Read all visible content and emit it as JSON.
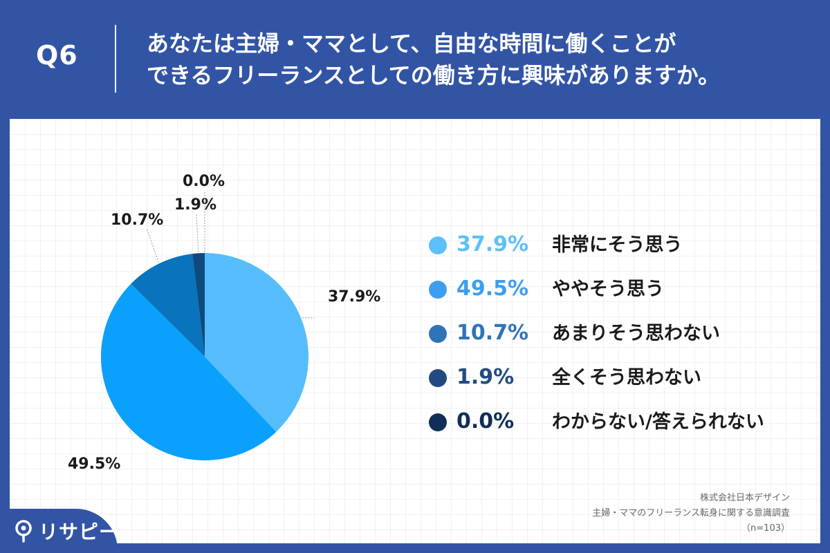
{
  "header": {
    "question_label": "Q6",
    "title_lines": [
      "あなたは主婦・ママとして、自由な時間に働くことが",
      "できるフリーランスとしての働き方に興味がありますか。"
    ]
  },
  "chart_data": {
    "type": "pie",
    "categories": [
      "非常にそう思う",
      "ややそう思う",
      "あまりそう思わない",
      "全くそう思わない",
      "わからない/答えられない"
    ],
    "values": [
      37.9,
      49.5,
      10.7,
      1.9,
      0.0
    ],
    "labels": [
      "37.9%",
      "49.5%",
      "10.7%",
      "1.9%",
      "0.0%"
    ],
    "colors": [
      "#56bdfd",
      "#0aa0fc",
      "#0973bd",
      "#0e4a7d",
      "#0c2f57"
    ],
    "legend_pct_colors": [
      "#5cc0fb",
      "#3d9ef1",
      "#2f73b8",
      "#234a80",
      "#102e57"
    ],
    "legend_placement": "right",
    "unit": "%"
  },
  "source": {
    "company": "株式会社日本デザイン",
    "survey": "主婦・ママのフリーランス転身に関する意識調査",
    "sample": "（n=103）"
  },
  "brand": {
    "name": "リサピー",
    "logo_icon": "magnifier-pin-icon"
  }
}
